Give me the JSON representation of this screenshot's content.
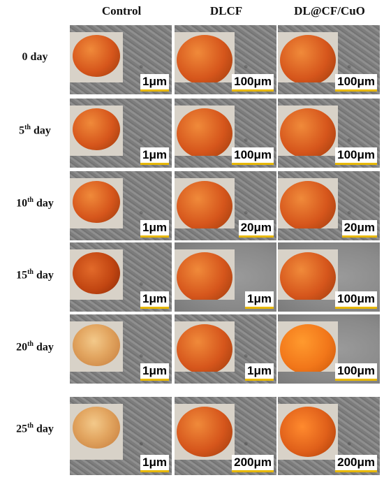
{
  "columns": [
    "Control",
    "DLCF",
    "DL@CF/CuO"
  ],
  "rows": [
    {
      "num": "0",
      "sup": "",
      "suffix": " day"
    },
    {
      "num": "5",
      "sup": "th",
      "suffix": " day"
    },
    {
      "num": "10",
      "sup": "th",
      "suffix": " day"
    },
    {
      "num": "15",
      "sup": "th",
      "suffix": " day"
    },
    {
      "num": "20",
      "sup": "th",
      "suffix": " day"
    },
    {
      "num": "25",
      "sup": "th",
      "suffix": " day"
    }
  ],
  "scale_bars": [
    [
      "1μm",
      "100μm",
      "100μm"
    ],
    [
      "1μm",
      "100μm",
      "100μm"
    ],
    [
      "1μm",
      "20μm",
      "20μm"
    ],
    [
      "1μm",
      "1μm",
      "100μm"
    ],
    [
      "1μm",
      "1μm",
      "100μm"
    ],
    [
      "1μm",
      "200μm",
      "200μm"
    ]
  ],
  "colors": {
    "scale_bar_underline": "#e8b800",
    "tomato_fresh": "#d6561c",
    "tomato_dried": "#e0a060",
    "sem_gray": "#858585"
  }
}
